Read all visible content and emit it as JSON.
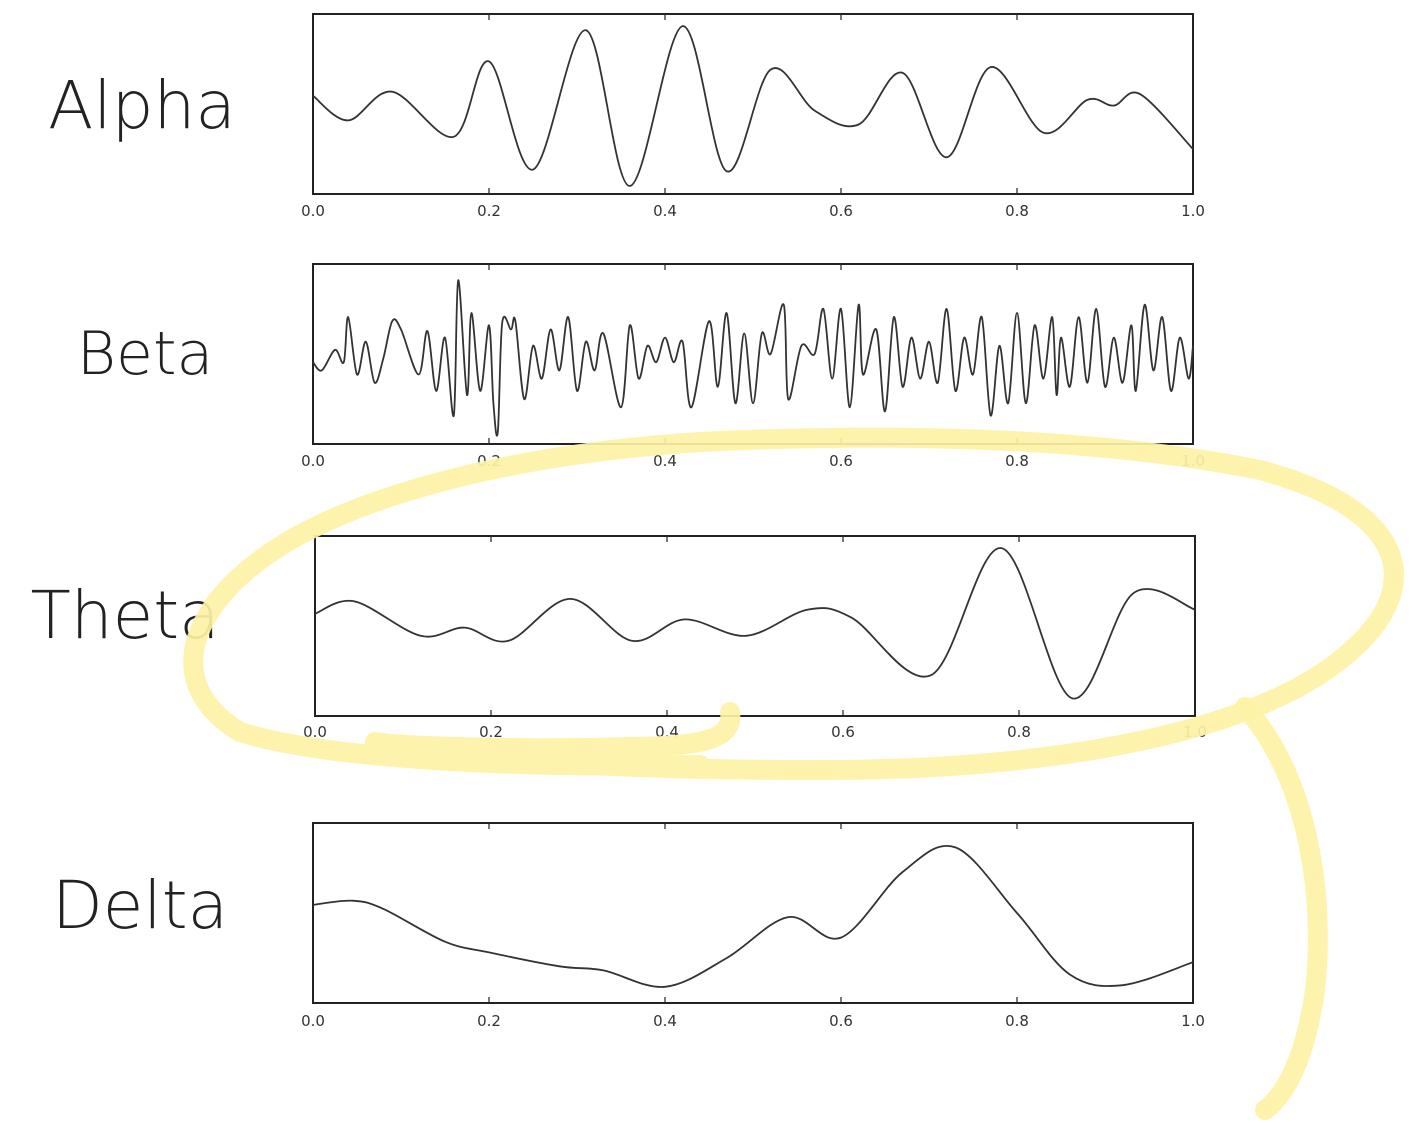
{
  "colors": {
    "line": "#333333",
    "frame": "#222222",
    "highlight": "#fdf2a5"
  },
  "chart_data": [
    {
      "type": "line",
      "label": "Alpha",
      "xlim": [
        0.0,
        1.0
      ],
      "xticks": [
        "0.0",
        "0.2",
        "0.4",
        "0.6",
        "0.8",
        "1.0"
      ],
      "ylim": [
        -1.0,
        1.0
      ],
      "x": [
        0.0,
        0.04,
        0.09,
        0.16,
        0.2,
        0.25,
        0.31,
        0.36,
        0.42,
        0.47,
        0.52,
        0.57,
        0.62,
        0.67,
        0.72,
        0.77,
        0.83,
        0.88,
        0.91,
        0.94,
        1.0
      ],
      "y": [
        0.1,
        -0.2,
        0.15,
        -0.4,
        0.52,
        -0.8,
        0.9,
        -1.0,
        0.95,
        -0.82,
        0.42,
        -0.08,
        -0.25,
        0.38,
        -0.65,
        0.45,
        -0.35,
        0.05,
        -0.02,
        0.12,
        -0.55
      ]
    },
    {
      "type": "line",
      "label": "Beta",
      "xlim": [
        0.0,
        1.0
      ],
      "xticks": [
        "0.0",
        "0.2",
        "0.4",
        "0.6",
        "0.8",
        "1.0"
      ],
      "ylim": [
        -1.0,
        1.0
      ],
      "x": [
        0.0,
        0.01,
        0.025,
        0.035,
        0.04,
        0.05,
        0.06,
        0.07,
        0.08,
        0.09,
        0.1,
        0.12,
        0.13,
        0.14,
        0.15,
        0.16,
        0.165,
        0.175,
        0.18,
        0.19,
        0.2,
        0.205,
        0.21,
        0.215,
        0.225,
        0.23,
        0.24,
        0.25,
        0.26,
        0.27,
        0.28,
        0.29,
        0.3,
        0.31,
        0.32,
        0.33,
        0.35,
        0.36,
        0.37,
        0.38,
        0.39,
        0.4,
        0.41,
        0.42,
        0.43,
        0.45,
        0.46,
        0.47,
        0.48,
        0.49,
        0.5,
        0.51,
        0.52,
        0.535,
        0.54,
        0.555,
        0.57,
        0.58,
        0.59,
        0.6,
        0.61,
        0.62,
        0.625,
        0.64,
        0.65,
        0.66,
        0.67,
        0.68,
        0.69,
        0.7,
        0.71,
        0.72,
        0.73,
        0.74,
        0.75,
        0.76,
        0.77,
        0.78,
        0.79,
        0.8,
        0.81,
        0.82,
        0.83,
        0.84,
        0.845,
        0.85,
        0.86,
        0.87,
        0.88,
        0.89,
        0.9,
        0.91,
        0.92,
        0.93,
        0.935,
        0.945,
        0.955,
        0.965,
        0.975,
        0.985,
        0.995,
        1.0
      ],
      "y": [
        -0.1,
        -0.2,
        0.05,
        -0.1,
        0.45,
        -0.25,
        0.15,
        -0.35,
        -0.05,
        0.4,
        0.3,
        -0.25,
        0.28,
        -0.45,
        0.2,
        -0.75,
        0.9,
        -0.5,
        0.5,
        -0.45,
        0.35,
        -0.6,
        -0.95,
        0.38,
        0.3,
        0.4,
        -0.55,
        0.1,
        -0.3,
        0.3,
        -0.2,
        0.45,
        -0.45,
        0.15,
        -0.2,
        0.25,
        -0.65,
        0.35,
        -0.3,
        0.1,
        -0.1,
        0.2,
        -0.1,
        0.15,
        -0.65,
        0.4,
        -0.4,
        0.5,
        -0.6,
        0.25,
        -0.6,
        0.25,
        0.0,
        0.6,
        -0.55,
        0.1,
        0.0,
        0.55,
        -0.3,
        0.55,
        -0.65,
        0.6,
        -0.25,
        0.3,
        -0.7,
        0.45,
        -0.4,
        0.2,
        -0.3,
        0.15,
        -0.35,
        0.55,
        -0.45,
        0.2,
        -0.25,
        0.45,
        -0.75,
        0.1,
        -0.6,
        0.5,
        -0.6,
        0.35,
        -0.3,
        0.45,
        -0.5,
        0.2,
        -0.4,
        0.45,
        -0.35,
        0.55,
        -0.4,
        0.2,
        -0.35,
        0.35,
        -0.45,
        0.6,
        -0.2,
        0.45,
        -0.45,
        0.2,
        -0.3,
        0.1
      ]
    },
    {
      "type": "line",
      "label": "Theta",
      "xlim": [
        0.0,
        1.0
      ],
      "xticks": [
        "0.0",
        "0.2",
        "0.4",
        "0.6",
        "0.8",
        "1.0"
      ],
      "ylim": [
        -1.0,
        1.0
      ],
      "x": [
        0.0,
        0.045,
        0.12,
        0.17,
        0.22,
        0.29,
        0.36,
        0.42,
        0.49,
        0.56,
        0.61,
        0.7,
        0.78,
        0.86,
        0.93,
        1.0
      ],
      "y": [
        0.15,
        0.3,
        -0.12,
        -0.02,
        -0.18,
        0.33,
        -0.18,
        0.08,
        -0.12,
        0.2,
        0.1,
        -0.6,
        0.95,
        -0.88,
        0.4,
        0.2
      ]
    },
    {
      "type": "line",
      "label": "Delta",
      "xlim": [
        0.0,
        1.0
      ],
      "xticks": [
        "0.0",
        "0.2",
        "0.4",
        "0.6",
        "0.8",
        "1.0"
      ],
      "ylim": [
        -1.0,
        1.0
      ],
      "x": [
        0.0,
        0.045,
        0.08,
        0.15,
        0.2,
        0.28,
        0.33,
        0.4,
        0.47,
        0.54,
        0.6,
        0.67,
        0.73,
        0.8,
        0.86,
        0.92,
        1.0
      ],
      "y": [
        0.1,
        0.15,
        0.05,
        -0.35,
        -0.48,
        -0.65,
        -0.7,
        -0.9,
        -0.55,
        -0.05,
        -0.3,
        0.5,
        0.8,
        0.0,
        -0.75,
        -0.88,
        -0.6
      ]
    }
  ]
}
